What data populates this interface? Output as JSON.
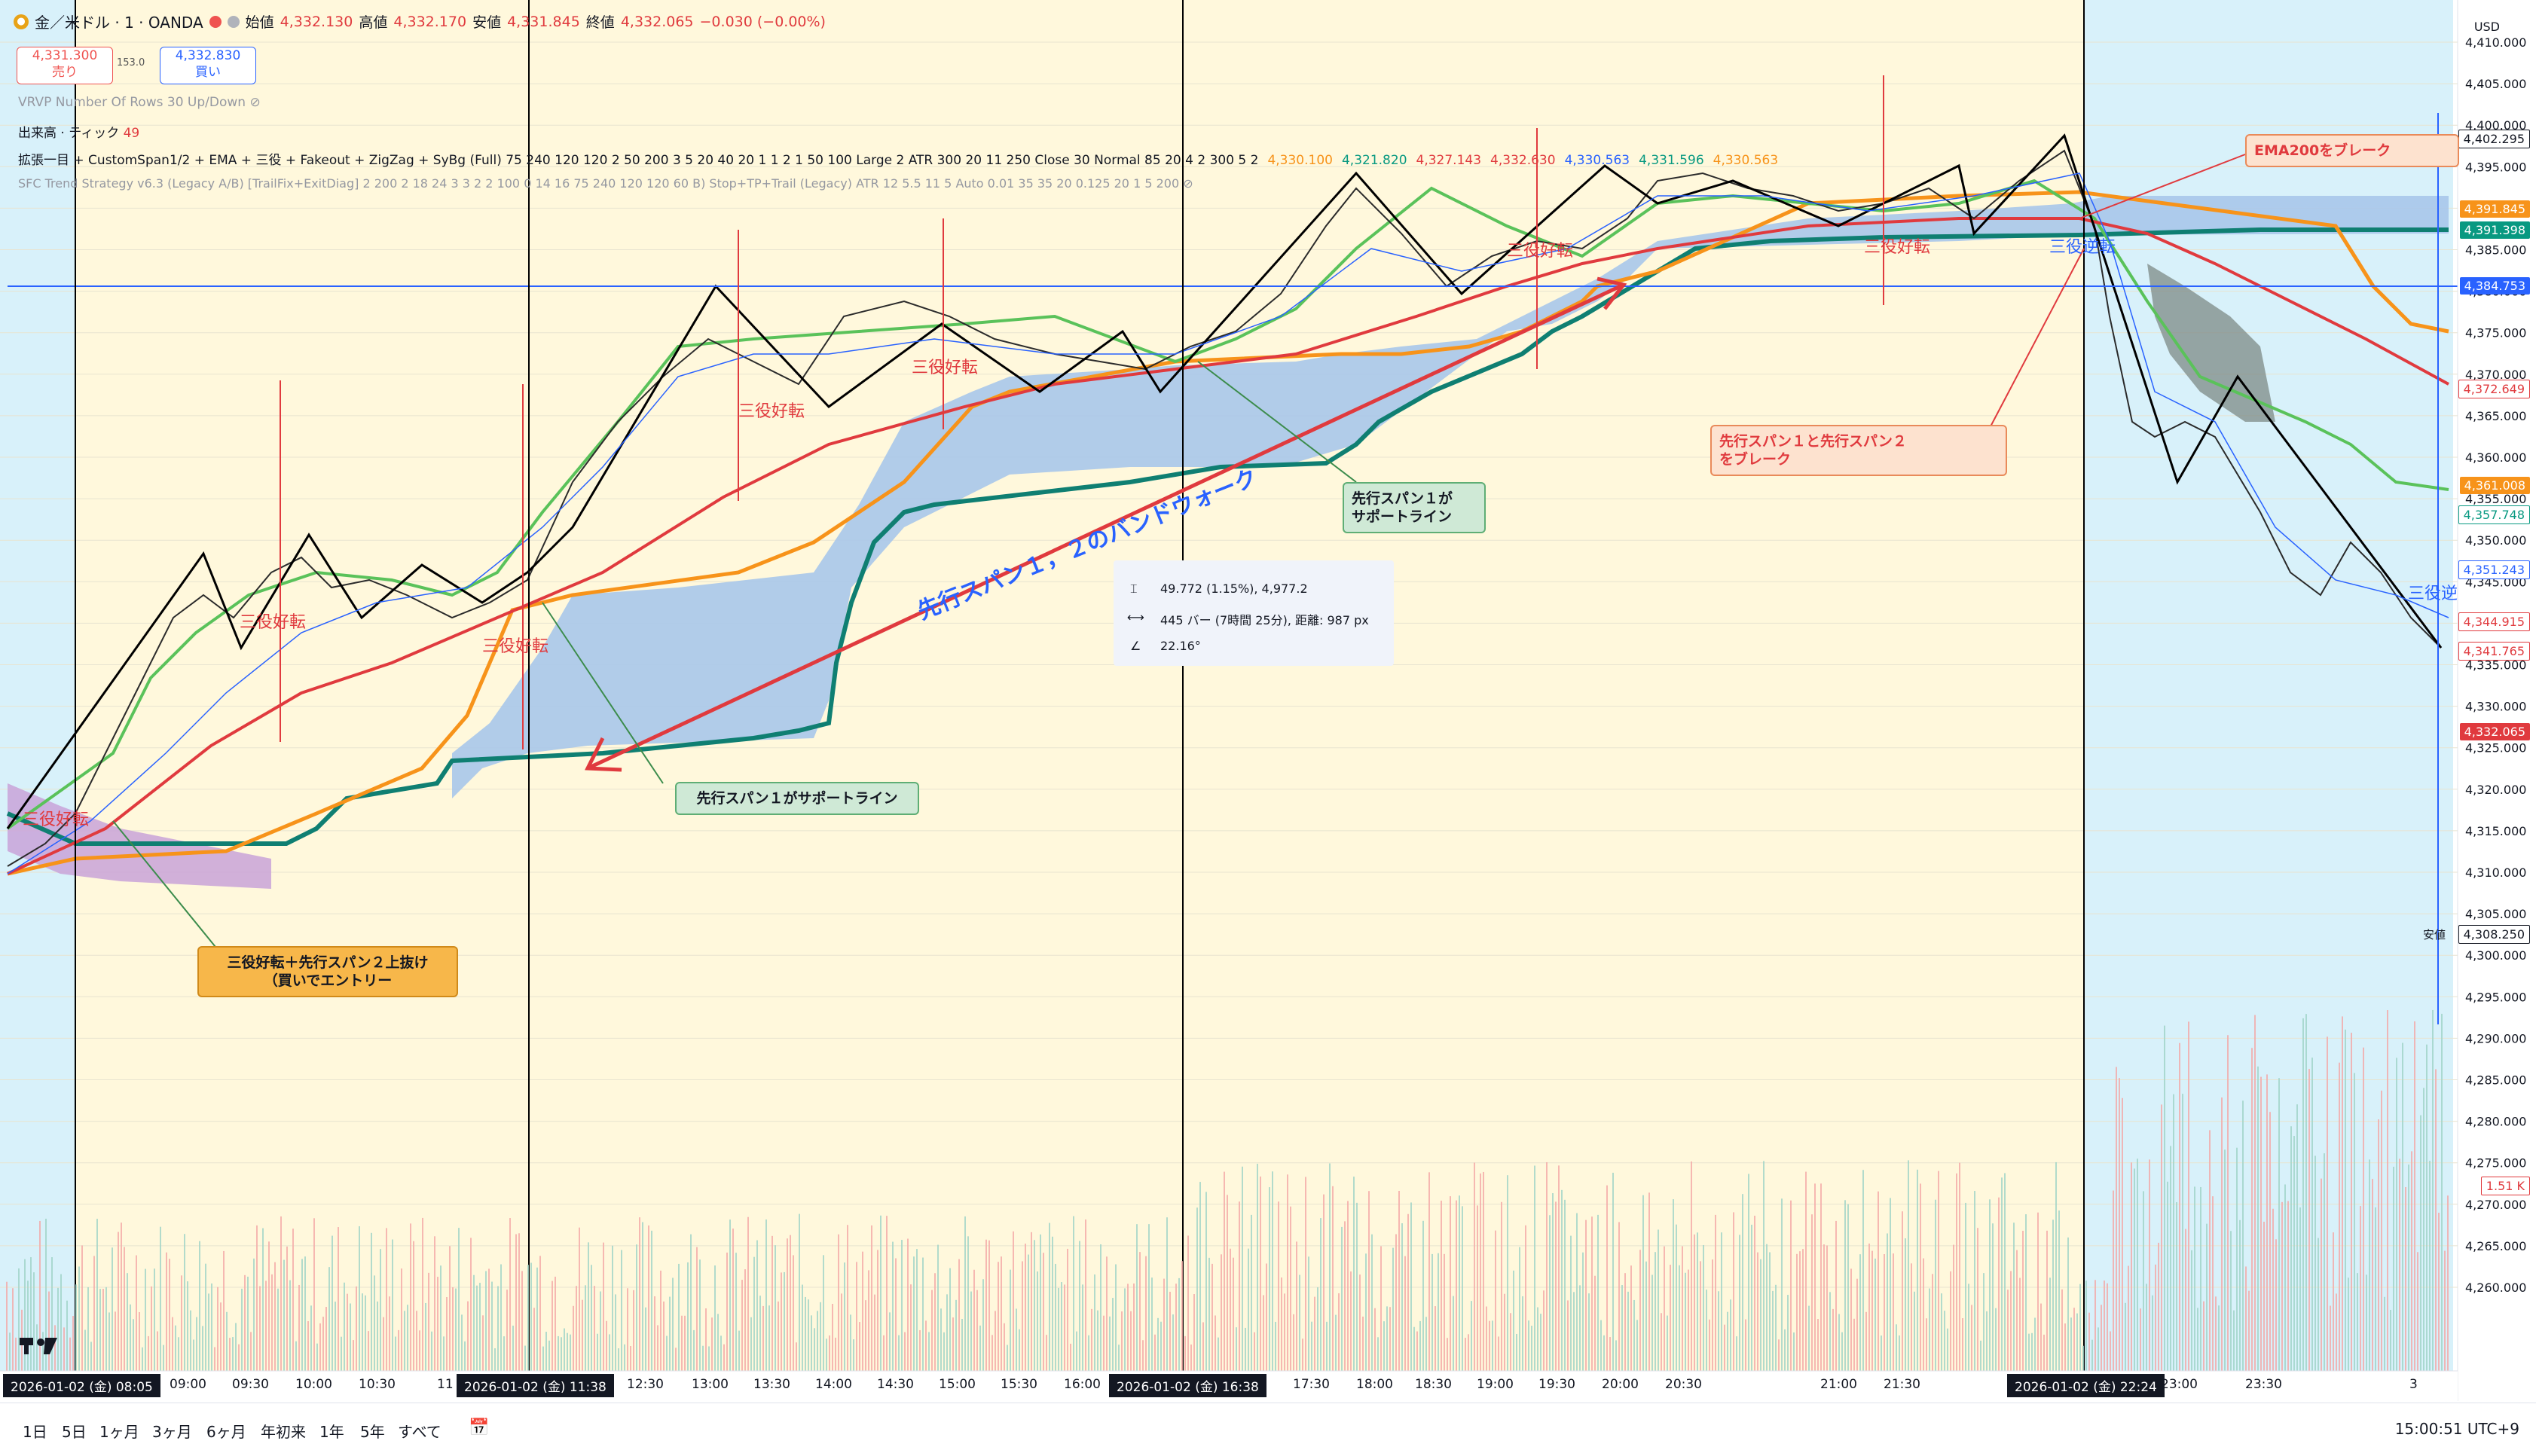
{
  "header": {
    "symbol": "金／米ドル · 1 · OANDA",
    "open_label": "始値",
    "open": "4,332.130",
    "high_label": "高値",
    "high": "4,332.170",
    "low_label": "安値",
    "low": "4,331.845",
    "close_label": "終値",
    "close": "4,332.065",
    "change": "−0.030 (−0.00%)"
  },
  "trade": {
    "sell_price": "4,331.300",
    "sell_label": "売り",
    "spread": "153.0",
    "buy_price": "4,332.830",
    "buy_label": "買い"
  },
  "indicators": {
    "vrvp": "VRVP Number Of Rows 30 Up/Down",
    "volume_label": "出来高 · ティック",
    "volume_value": "49",
    "ichimoku": "拡張一目 + CustomSpan1/2 + EMA + 三役 + Fakeout + ZigZag + SyBg (Full) 75 240 120 120 2 50 200 3 5 20 40 20 1 1 2 1 50 100 Large 2 ATR 300 20 11 250 Close 30 Normal 85 20 4 2 300 5 2",
    "ichimoku_values": [
      {
        "v": "4,330.100",
        "c": "#f7931a"
      },
      {
        "v": "4,321.820",
        "c": "#089981"
      },
      {
        "v": "4,327.143",
        "c": "#e03a3e"
      },
      {
        "v": "4,332.630",
        "c": "#e03a3e"
      },
      {
        "v": "4,330.563",
        "c": "#2962ff"
      },
      {
        "v": "4,331.596",
        "c": "#089981"
      },
      {
        "v": "4,330.563",
        "c": "#f7931a"
      }
    ],
    "sfc": "SFC Trend Strategy v6.3 (Legacy A/B) [TrailFix+ExitDiag] 2 200 2 18 24 3 3 2 2 100 0 14 16 75 240 120 120 60 B) Stop+TP+Trail (Legacy) ATR 12 5.5 11 5 Auto 0.01 35 35 20 0.125 20 1 5 200"
  },
  "price_axis": {
    "currency": "USD",
    "ticks": [
      "4,410.000",
      "4,405.000",
      "4,400.000",
      "4,395.000",
      "4,390.000",
      "4,385.000",
      "4,380.000",
      "4,375.000",
      "4,370.000",
      "4,365.000",
      "4,360.000",
      "4,355.000",
      "4,350.000",
      "4,345.000",
      "4,340.000",
      "4,335.000",
      "4,330.000",
      "4,325.000",
      "4,320.000",
      "4,315.000",
      "4,310.000",
      "4,305.000",
      "4,300.000",
      "4,295.000",
      "4,290.000",
      "4,285.000",
      "4,280.000",
      "4,275.000",
      "4,270.000",
      "4,265.000",
      "4,260.000"
    ],
    "high_label": "高値",
    "low_label": "安値",
    "tags": [
      {
        "v": "4,402.295",
        "c": "#ffffff",
        "t": "#131722"
      },
      {
        "v": "4,391.845",
        "c": "#f7931a",
        "t": "#fff"
      },
      {
        "v": "4,391.398",
        "c": "#089981",
        "t": "#fff"
      },
      {
        "v": "4,384.753",
        "c": "#2962ff",
        "t": "#fff"
      },
      {
        "v": "4,372.649",
        "c": "#ffffff",
        "t": "#e03a3e"
      },
      {
        "v": "4,361.008",
        "c": "#f7931a",
        "t": "#fff"
      },
      {
        "v": "4,357.748",
        "c": "#ffffff",
        "t": "#089981"
      },
      {
        "v": "4,351.243",
        "c": "#ffffff",
        "t": "#2962ff"
      },
      {
        "v": "4,344.915",
        "c": "#ffffff",
        "t": "#e03a3e"
      },
      {
        "v": "4,341.765",
        "c": "#ffffff",
        "t": "#e03a3e"
      },
      {
        "v": "4,332.065",
        "c": "#e03a3e",
        "t": "#fff"
      },
      {
        "v": "4,308.250",
        "c": "#ffffff",
        "t": "#131722"
      },
      {
        "v": "1.51 K",
        "c": "#ffffff",
        "t": "#e03a3e"
      }
    ]
  },
  "time_axis": {
    "labels": [
      "09:00",
      "09:30",
      "10:00",
      "10:30",
      "11",
      "12:30",
      "13:00",
      "13:30",
      "14:00",
      "14:30",
      "15:00",
      "15:30",
      "16:00",
      "17:30",
      "18:00",
      "18:30",
      "19:00",
      "19:30",
      "20:00",
      "20:30",
      "21:00",
      "21:30",
      "23:00",
      "23:30",
      "3"
    ],
    "badges": [
      "2026-01-02 (金)  08:05",
      "2026-01-02 (金)  11:38",
      "2026-01-02 (金)  16:38",
      "2026-01-02 (金)  22:24"
    ]
  },
  "measure": {
    "line1": "49.772 (1.15%), 4,977.2",
    "line2": "445 バー (7時間 25分), 距離: 987 px",
    "line3": "22.16°"
  },
  "annotations": {
    "entry": "三役好転＋先行スパン２上抜け\n（買いでエントリー",
    "support1": "先行スパン１がサポートライン",
    "support2": "先行スパン１が\nサポートライン",
    "band_walk": "先行スパン１，２のバンドウォーク",
    "ema_break": "EMA200をブレーク",
    "span_break": "先行スパン１と先行スパン２\nをブレーク",
    "sanyaku": [
      "三役好転",
      "三役好転",
      "三役好転",
      "三役好転",
      "三役好転",
      "三役好転",
      "三役好転",
      "三役逆転",
      "三役逆"
    ]
  },
  "bottom": {
    "timeframes": [
      "1日",
      "5日",
      "1ヶ月",
      "3ヶ月",
      "6ヶ月",
      "年初来",
      "1年",
      "5年",
      "すべて"
    ],
    "clock": "15:00:51 UTC+9"
  },
  "colors": {
    "bg_yellow": "#fff8dc",
    "bg_cyan": "#d8f1fa",
    "cloud_blue": "#a9c6ea",
    "cloud_purple": "#c9a3d8",
    "ema": "#e03a3e",
    "kijun_orange": "#f7931a",
    "span_green": "#0f7f72",
    "tenkan_green": "#5ac25a"
  }
}
